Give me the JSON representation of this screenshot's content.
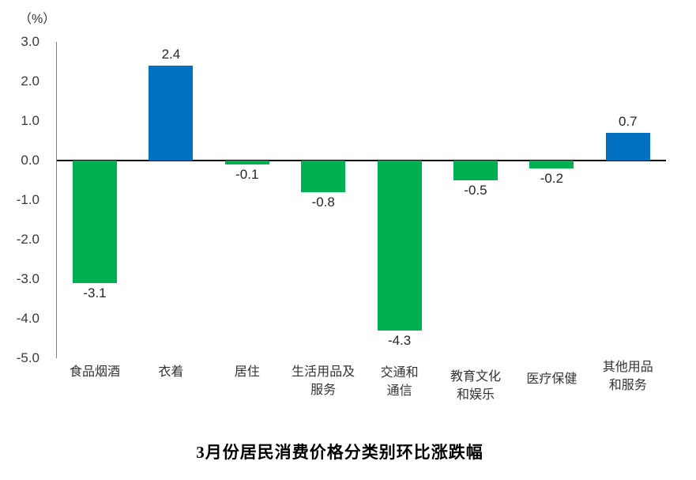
{
  "chart_data": {
    "type": "bar",
    "title": "3月份居民消费价格分类别环比涨跌幅",
    "unit_label": "（%）",
    "categories": [
      "食品烟酒",
      "衣着",
      "居住",
      "生活用品及服务",
      "交通和通信",
      "教育文化和娱乐",
      "医疗保健",
      "其他用品和服务"
    ],
    "category_label_lines": [
      [
        "食品烟酒"
      ],
      [
        "衣着"
      ],
      [
        "居住"
      ],
      [
        "生活用品及",
        "服务"
      ],
      [
        "交通和",
        "通信"
      ],
      [
        "教育文化",
        "和娱乐"
      ],
      [
        "医疗保健"
      ],
      [
        "其他用品",
        "和服务"
      ]
    ],
    "values": [
      -3.1,
      2.4,
      -0.1,
      -0.8,
      -4.3,
      -0.5,
      -0.2,
      0.7
    ],
    "value_labels": [
      "-3.1",
      "2.4",
      "-0.1",
      "-0.8",
      "-4.3",
      "-0.5",
      "-0.2",
      "0.7"
    ],
    "ylim": [
      -5.0,
      3.0
    ],
    "y_ticks": [
      3.0,
      2.0,
      1.0,
      0.0,
      -1.0,
      -2.0,
      -3.0,
      -4.0,
      -5.0
    ],
    "y_tick_labels": [
      "3.0",
      "2.0",
      "1.0",
      "0.0",
      "-1.0",
      "-2.0",
      "-3.0",
      "-4.0",
      "-5.0"
    ],
    "positive_color": "#0070C0",
    "negative_color": "#00B050",
    "grid": false,
    "legend": false,
    "xlabel": "",
    "ylabel": "（%）"
  }
}
